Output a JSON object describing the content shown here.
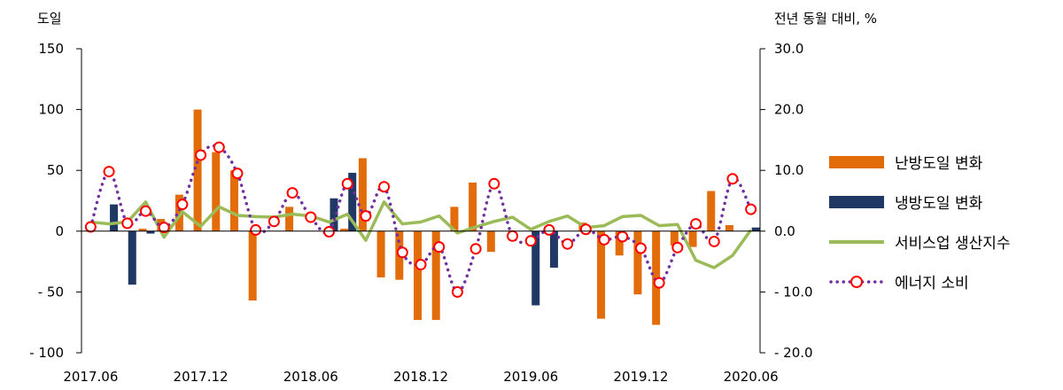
{
  "chart_data": {
    "type": "bar+line",
    "left_unit": "도일",
    "right_unit": "전년 동월 대비, %",
    "x_ticks": [
      "2017.06",
      "2017.12",
      "2018.06",
      "2018.12",
      "2019.06",
      "2019.12",
      "2020.06"
    ],
    "left_ticks": [
      "150",
      "100",
      "50",
      "0",
      "- 50",
      "- 100"
    ],
    "right_ticks": [
      "30.0",
      "20.0",
      "10.0",
      "0.0",
      "- 10.0",
      "- 20.0"
    ],
    "left_ylim": [
      -100,
      150
    ],
    "right_ylim": [
      -20,
      30
    ],
    "months": [
      "2017.06",
      "2017.07",
      "2017.08",
      "2017.09",
      "2017.10",
      "2017.11",
      "2017.12",
      "2018.01",
      "2018.02",
      "2018.03",
      "2018.04",
      "2018.05",
      "2018.06",
      "2018.07",
      "2018.08",
      "2018.09",
      "2018.10",
      "2018.11",
      "2018.12",
      "2019.01",
      "2019.02",
      "2019.03",
      "2019.04",
      "2019.05",
      "2019.06",
      "2019.07",
      "2019.08",
      "2019.09",
      "2019.10",
      "2019.11",
      "2019.12",
      "2020.01",
      "2020.02",
      "2020.03",
      "2020.04",
      "2020.05",
      "2020.06"
    ],
    "series": [
      {
        "name": "난방도일 변화",
        "kind": "bar",
        "axis": "left",
        "color": "#E36C0A",
        "values": [
          0,
          0,
          0,
          2,
          10,
          30,
          100,
          65,
          50,
          -57,
          0,
          20,
          0,
          0,
          2,
          60,
          -38,
          -40,
          -73,
          -73,
          20,
          40,
          -17,
          0,
          0,
          -2,
          0,
          7,
          -72,
          -20,
          -52,
          -77,
          -12,
          -13,
          33,
          5,
          0
        ]
      },
      {
        "name": "냉방도일 변화",
        "kind": "bar",
        "axis": "left",
        "color": "#1F3864",
        "values": [
          0,
          22,
          -44,
          -2,
          0,
          0,
          0,
          0,
          0,
          0,
          0,
          0,
          0,
          27,
          48,
          0,
          0,
          0,
          0,
          0,
          0,
          0,
          0,
          0,
          -61,
          -30,
          0,
          0,
          0,
          0,
          0,
          0,
          0,
          0,
          0,
          0,
          3
        ]
      },
      {
        "name": "서비스업 생산지수",
        "kind": "line",
        "axis": "right",
        "color": "#9BBB59",
        "values": [
          1.5,
          1.2,
          1.5,
          4.8,
          -1.0,
          3.2,
          0.8,
          4.0,
          2.6,
          2.4,
          2.3,
          2.8,
          2.5,
          1.5,
          2.8,
          -1.5,
          4.8,
          1.2,
          1.5,
          2.5,
          -0.3,
          0.7,
          1.6,
          2.3,
          0.3,
          1.6,
          2.5,
          0.6,
          0.9,
          2.4,
          2.6,
          0.9,
          1.1,
          -4.8,
          -6.0,
          -4.0,
          0.2
        ]
      },
      {
        "name": "에너지 소비",
        "kind": "dotted-line",
        "axis": "right",
        "color": "#7030A0",
        "values": [
          0.7,
          9.8,
          1.3,
          3.3,
          0.6,
          4.4,
          12.5,
          13.8,
          9.5,
          0.2,
          1.6,
          6.3,
          2.3,
          -0.1,
          7.8,
          2.5,
          7.3,
          -3.5,
          -5.5,
          -2.6,
          -10.0,
          -2.9,
          7.8,
          -0.8,
          -1.6,
          0.2,
          -2.1,
          0.3,
          -1.4,
          -0.9,
          -2.8,
          -8.5,
          -2.7,
          1.2,
          -1.7,
          8.6,
          3.6
        ]
      }
    ]
  }
}
